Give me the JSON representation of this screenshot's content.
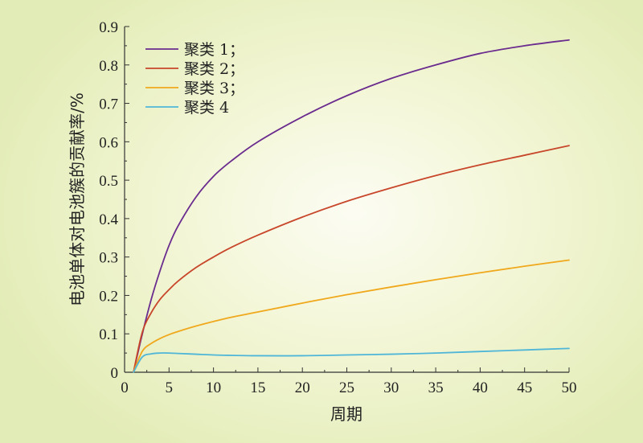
{
  "chart_data": {
    "type": "line",
    "title": "",
    "xlabel": "周期",
    "ylabel": "电池单体对电池簇的贡献率/%",
    "xlim": [
      0,
      50
    ],
    "ylim": [
      0,
      0.9
    ],
    "xticks": [
      0,
      5,
      10,
      15,
      20,
      25,
      30,
      35,
      40,
      45,
      50
    ],
    "yticks": [
      0,
      0.1,
      0.2,
      0.3,
      0.4,
      0.5,
      0.6,
      0.7,
      0.8,
      0.9
    ],
    "xtick_labels": [
      "0",
      "5",
      "10",
      "15",
      "20",
      "25",
      "30",
      "35",
      "40",
      "45",
      "50"
    ],
    "ytick_labels": [
      "0",
      "0.1",
      "0.2",
      "0.3",
      "0.4",
      "0.5",
      "0.6",
      "0.7",
      "0.8",
      "0.9"
    ],
    "grid": false,
    "legend_position": "top-left",
    "x": [
      1,
      2,
      3,
      4,
      5,
      6,
      8,
      10,
      12,
      15,
      20,
      25,
      30,
      35,
      40,
      45,
      50
    ],
    "series": [
      {
        "name": "聚类 1；",
        "color": "#6a2c8e",
        "values": [
          0,
          0.1,
          0.19,
          0.265,
          0.33,
          0.38,
          0.455,
          0.51,
          0.55,
          0.6,
          0.665,
          0.72,
          0.765,
          0.8,
          0.83,
          0.85,
          0.865
        ]
      },
      {
        "name": "聚类 2；",
        "color": "#c8462a",
        "values": [
          0,
          0.105,
          0.155,
          0.19,
          0.215,
          0.237,
          0.272,
          0.3,
          0.325,
          0.357,
          0.404,
          0.445,
          0.48,
          0.512,
          0.54,
          0.565,
          0.59
        ]
      },
      {
        "name": "聚类 3；",
        "color": "#f0a81c",
        "values": [
          0,
          0.055,
          0.075,
          0.088,
          0.098,
          0.106,
          0.12,
          0.132,
          0.143,
          0.157,
          0.18,
          0.202,
          0.222,
          0.241,
          0.259,
          0.276,
          0.292
        ]
      },
      {
        "name": "聚类 4",
        "color": "#4fb6d8",
        "values": [
          0,
          0.04,
          0.048,
          0.05,
          0.05,
          0.049,
          0.047,
          0.045,
          0.044,
          0.043,
          0.043,
          0.045,
          0.047,
          0.05,
          0.054,
          0.058,
          0.062
        ]
      }
    ]
  }
}
